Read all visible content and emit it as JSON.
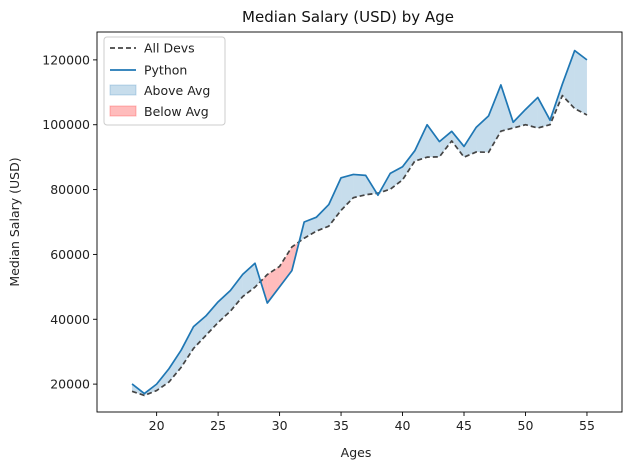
{
  "chart_data": {
    "type": "line",
    "title": "Median Salary (USD) by Age",
    "xlabel": "Ages",
    "ylabel": "Median Salary (USD)",
    "xlim": [
      15.15,
      57.85
    ],
    "ylim": [
      11400,
      128600
    ],
    "x_ticks": [
      20,
      25,
      30,
      35,
      40,
      45,
      50,
      55
    ],
    "y_ticks": [
      20000,
      40000,
      60000,
      80000,
      100000,
      120000
    ],
    "x": [
      18,
      19,
      20,
      21,
      22,
      23,
      24,
      25,
      26,
      27,
      28,
      29,
      30,
      31,
      32,
      33,
      34,
      35,
      36,
      37,
      38,
      39,
      40,
      41,
      42,
      43,
      44,
      45,
      46,
      47,
      48,
      49,
      50,
      51,
      52,
      53,
      54,
      55
    ],
    "series": [
      {
        "name": "All Devs",
        "style": "dashed",
        "color": "#444444",
        "values": [
          17784,
          16500,
          18012,
          20628,
          25206,
          31000,
          35000,
          39000,
          42500,
          47000,
          49900,
          53800,
          56300,
          62300,
          65000,
          67200,
          68700,
          73600,
          77500,
          78400,
          78900,
          80100,
          83000,
          88800,
          90000,
          90100,
          95000,
          90000,
          91600,
          91500,
          98000,
          99000,
          100000,
          99000,
          100000,
          109000,
          105000,
          103000
        ]
      },
      {
        "name": "Python",
        "style": "solid",
        "color": "#1f77b4",
        "values": [
          20046,
          17100,
          20000,
          24744,
          30500,
          37732,
          41000,
          45372,
          48876,
          53850,
          57287,
          45000,
          50000,
          55000,
          70000,
          71496,
          75370,
          83640,
          84666,
          84392,
          78254,
          85000,
          87038,
          91991,
          100000,
          94796,
          97962,
          93302,
          99240,
          102736,
          112285,
          100771,
          104708,
          108423,
          101407,
          112542,
          122870,
          120000
        ]
      }
    ],
    "fills": [
      {
        "name": "Above Avg",
        "color": "#1f77b4",
        "alpha": 0.25
      },
      {
        "name": "Below Avg",
        "color": "#ff4040",
        "alpha": 0.35
      }
    ],
    "legend": {
      "placement": "top-left",
      "entries": [
        "All Devs",
        "Python",
        "Above Avg",
        "Below Avg"
      ]
    },
    "grid": false
  }
}
